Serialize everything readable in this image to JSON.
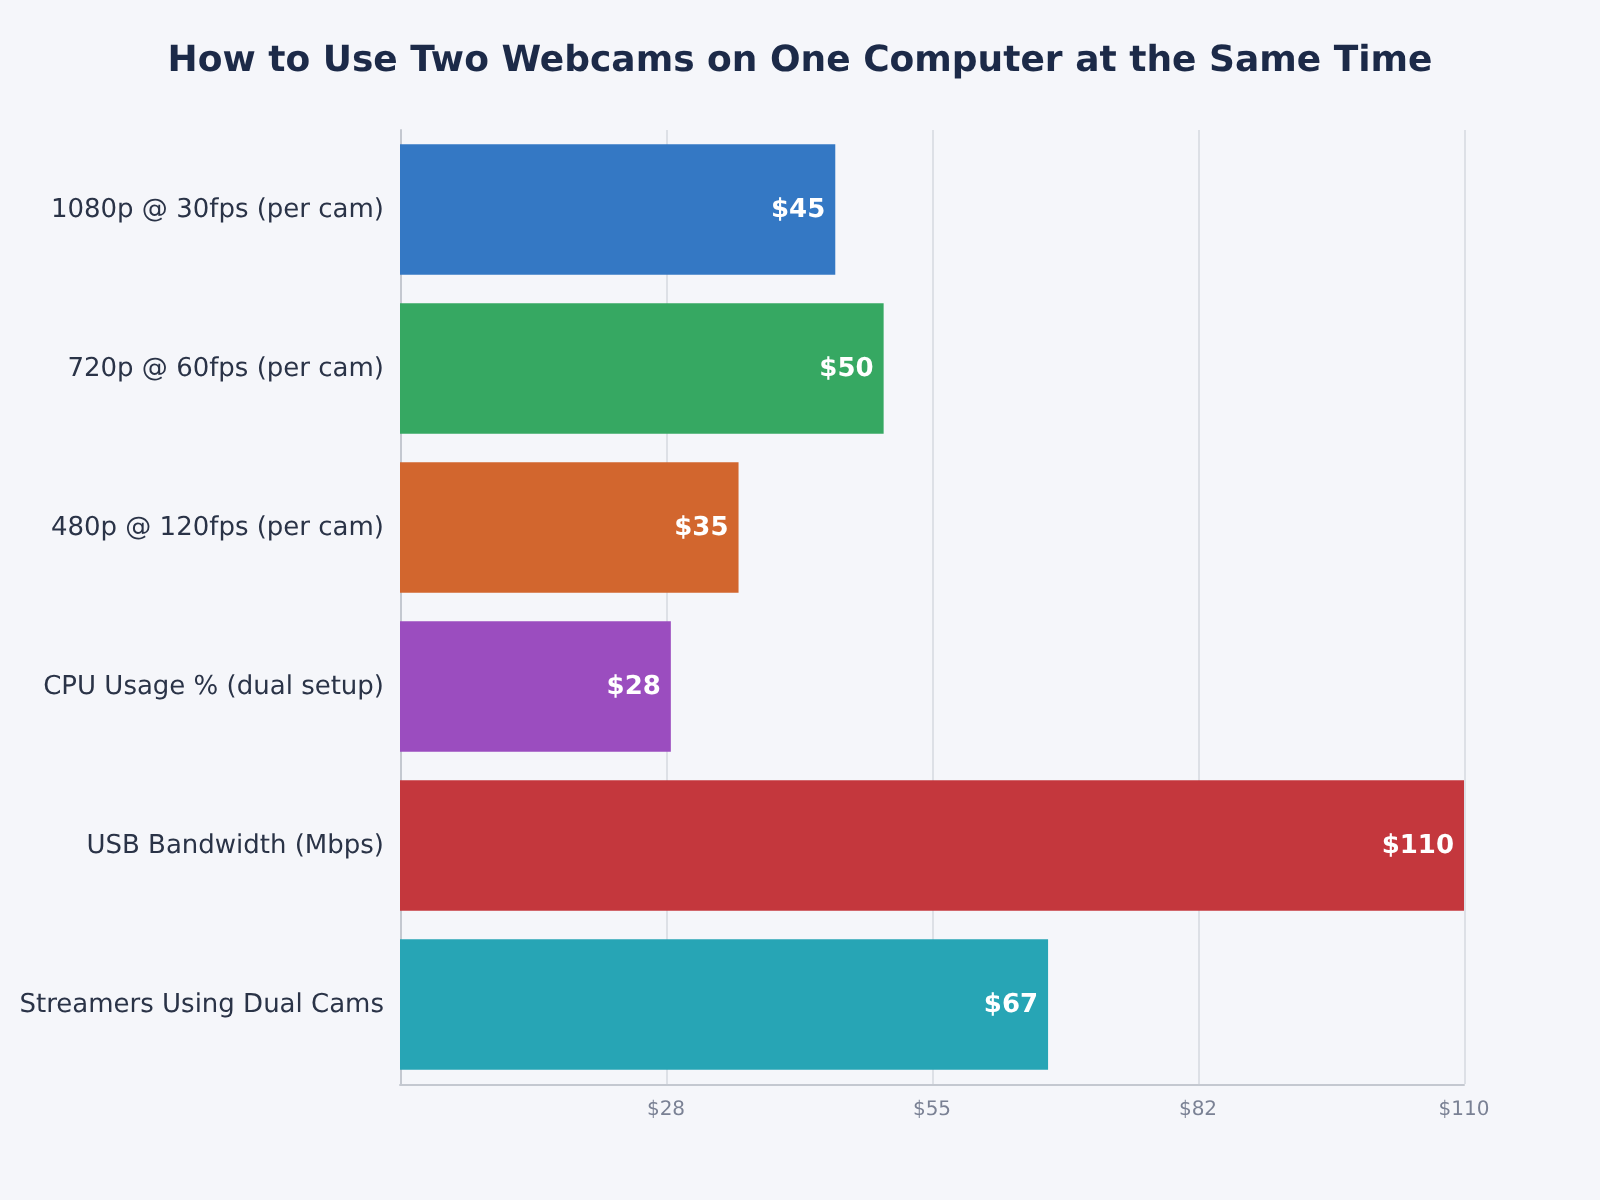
{
  "chart_data": {
    "type": "bar",
    "orientation": "horizontal",
    "title": "How to Use Two Webcams on One Computer at the Same Time",
    "categories": [
      "1080p @ 30fps (per cam)",
      "720p @ 60fps (per cam)",
      "480p @ 120fps (per cam)",
      "CPU Usage % (dual setup)",
      "USB Bandwidth (Mbps)",
      "Streamers Using Dual Cams"
    ],
    "values": [
      45,
      50,
      35,
      28,
      110,
      67
    ],
    "colors": [
      "#3478c4",
      "#36a862",
      "#d2662e",
      "#9b4dbf",
      "#c4373d",
      "#27a5b5"
    ],
    "value_labels": [
      "$45",
      "$50",
      "$35",
      "$28",
      "$110",
      "$67"
    ],
    "xlim": [
      0,
      110
    ],
    "xticks": [
      {
        "value": 27.5,
        "label": "$28"
      },
      {
        "value": 55,
        "label": "$55"
      },
      {
        "value": 82.5,
        "label": "$82"
      },
      {
        "value": 110,
        "label": "$110"
      }
    ],
    "grid": "x"
  }
}
